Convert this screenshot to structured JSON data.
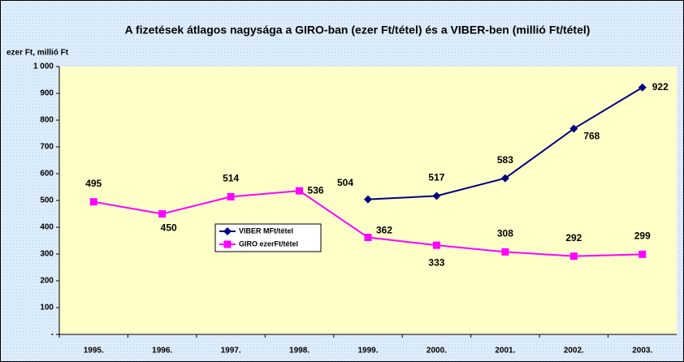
{
  "chart_data": {
    "type": "line",
    "title": "A fizetések átlagos nagysága a GIRO-ban (ezer Ft/tétel) és a VIBER-ben (millió Ft/tétel)",
    "y_axis_label": "ezer Ft, millió Ft",
    "categories": [
      "1995.",
      "1996.",
      "1997.",
      "1998.",
      "1999.",
      "2000.",
      "2001.",
      "2002.",
      "2003."
    ],
    "series": [
      {
        "name": "VIBER MFt/tétel",
        "color": "#000080",
        "marker": "diamond",
        "values": [
          null,
          null,
          null,
          null,
          504,
          517,
          583,
          768,
          922
        ]
      },
      {
        "name": "GIRO ezerFt/tétel",
        "color": "#ff00ff",
        "marker": "square",
        "values": [
          495,
          450,
          514,
          536,
          362,
          333,
          308,
          292,
          299
        ]
      }
    ],
    "ylim": [
      0,
      1000
    ],
    "yticks": [
      {
        "value": 0,
        "label": "-"
      },
      100,
      200,
      300,
      400,
      500,
      600,
      700,
      800,
      900,
      {
        "value": 1000,
        "label": "1 000"
      }
    ],
    "grid": false,
    "legend": "center-left"
  }
}
